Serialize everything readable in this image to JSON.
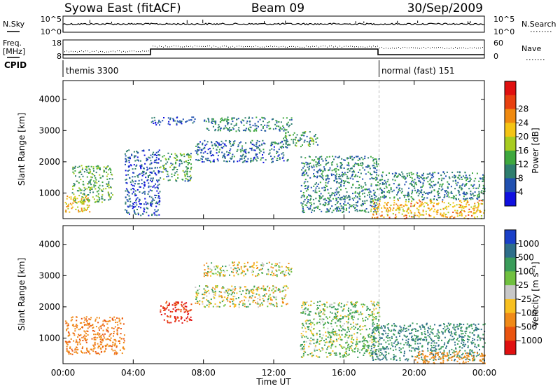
{
  "header": {
    "station": "Syowa East (fitACF)",
    "beam": "Beam 09",
    "date": "30/Sep/2009"
  },
  "noise_panel": {
    "left_label": "N.Sky",
    "right_label": "N.Search",
    "ytick_top": "10^5",
    "ytick_bottom": "10^0",
    "rtick_top": "10^5",
    "rtick_bottom": "10^0"
  },
  "freq_panel": {
    "left_label_1": "Freq.",
    "left_label_2": "[MHz]",
    "right_label": "Nave",
    "ytick_top": "18",
    "ytick_bottom": "8",
    "rtick_top": "60",
    "rtick_bottom": "0"
  },
  "cpid_panel": {
    "label": "CPID",
    "program_1": "themis 3300",
    "program_2": "normal (fast) 151",
    "switch_hour": 18
  },
  "time_axis": {
    "label": "Time UT",
    "ticks": [
      "00:00",
      "04:00",
      "08:00",
      "12:00",
      "16:00",
      "20:00",
      "00:00"
    ],
    "range_hours": [
      0,
      24
    ]
  },
  "range_axis": {
    "label": "Slant Range [km]",
    "ticks": [
      "1000",
      "2000",
      "3000",
      "4000"
    ],
    "range_km": [
      180,
      4600
    ]
  },
  "power_scale": {
    "label": "Power [dB]",
    "ticks": [
      "4",
      "8",
      "12",
      "16",
      "20",
      "24",
      "28"
    ],
    "colors": [
      "#1010e0",
      "#2050b0",
      "#2e7e6e",
      "#3ea83e",
      "#a8cc20",
      "#f4c414",
      "#f08a10",
      "#e84010",
      "#e01010"
    ]
  },
  "velocity_scale": {
    "label": "Velocity [m s⁻¹]",
    "ticks": [
      "1000",
      "500",
      "100",
      "25",
      "-25",
      "-100",
      "-500",
      "-1000"
    ],
    "colors": [
      "#1a40c8",
      "#2e6e8a",
      "#3a9c5a",
      "#70c040",
      "#c8c8c8",
      "#f8c020",
      "#f08a18",
      "#ea5410",
      "#e01010"
    ]
  },
  "chart_data": [
    {
      "type": "heatmap",
      "title": "Power",
      "x_label": "Time UT",
      "y_label": "Slant Range [km]",
      "x_range_hours": [
        0,
        24
      ],
      "y_range_km": [
        180,
        4600
      ],
      "colorbar_label": "Power [dB]",
      "colorbar_ticks": [
        4,
        8,
        12,
        16,
        20,
        24,
        28
      ],
      "scatter_regions": [
        {
          "t": [
            0.1,
            1.5
          ],
          "r": [
            400,
            1000
          ],
          "power_db": 22
        },
        {
          "t": [
            0.5,
            2.8
          ],
          "r": [
            700,
            1900
          ],
          "power_db": 14
        },
        {
          "t": [
            3.5,
            5.5
          ],
          "r": [
            300,
            2400
          ],
          "power_db": 6
        },
        {
          "t": [
            5.5,
            7.3
          ],
          "r": [
            1400,
            2300
          ],
          "power_db": 12
        },
        {
          "t": [
            5.0,
            7.5
          ],
          "r": [
            3200,
            3450
          ],
          "power_db": 6
        },
        {
          "t": [
            8.0,
            13.0
          ],
          "r": [
            3000,
            3450
          ],
          "power_db": 10
        },
        {
          "t": [
            7.5,
            12.8
          ],
          "r": [
            2000,
            2700
          ],
          "power_db": 8
        },
        {
          "t": [
            12.5,
            14.5
          ],
          "r": [
            2500,
            3000
          ],
          "power_db": 12
        },
        {
          "t": [
            13.5,
            18.0
          ],
          "r": [
            400,
            2200
          ],
          "power_db": 10
        },
        {
          "t": [
            17.5,
            24.0
          ],
          "r": [
            200,
            800
          ],
          "power_db": 24
        },
        {
          "t": [
            18.0,
            24.0
          ],
          "r": [
            800,
            1700
          ],
          "power_db": 10
        }
      ]
    },
    {
      "type": "heatmap",
      "title": "Velocity",
      "x_label": "Time UT",
      "y_label": "Slant Range [km]",
      "x_range_hours": [
        0,
        24
      ],
      "y_range_km": [
        180,
        4600
      ],
      "colorbar_label": "Velocity [m s⁻¹]",
      "colorbar_ticks": [
        1000,
        500,
        100,
        25,
        -25,
        -100,
        -500,
        -1000
      ],
      "scatter_regions": [
        {
          "t": [
            0.1,
            3.5
          ],
          "r": [
            500,
            1700
          ],
          "velocity": -400
        },
        {
          "t": [
            5.5,
            7.3
          ],
          "r": [
            1500,
            2200
          ],
          "velocity": -1000
        },
        {
          "t": [
            8.0,
            13.0
          ],
          "r": [
            3000,
            3450
          ],
          "velocity": 0
        },
        {
          "t": [
            7.5,
            12.8
          ],
          "r": [
            2000,
            2700
          ],
          "velocity": 0
        },
        {
          "t": [
            13.5,
            18.0
          ],
          "r": [
            400,
            2200
          ],
          "velocity": 100
        },
        {
          "t": [
            17.5,
            24.0
          ],
          "r": [
            300,
            1500
          ],
          "velocity": 500
        },
        {
          "t": [
            20.0,
            24.0
          ],
          "r": [
            200,
            600
          ],
          "velocity": -300
        }
      ]
    }
  ]
}
